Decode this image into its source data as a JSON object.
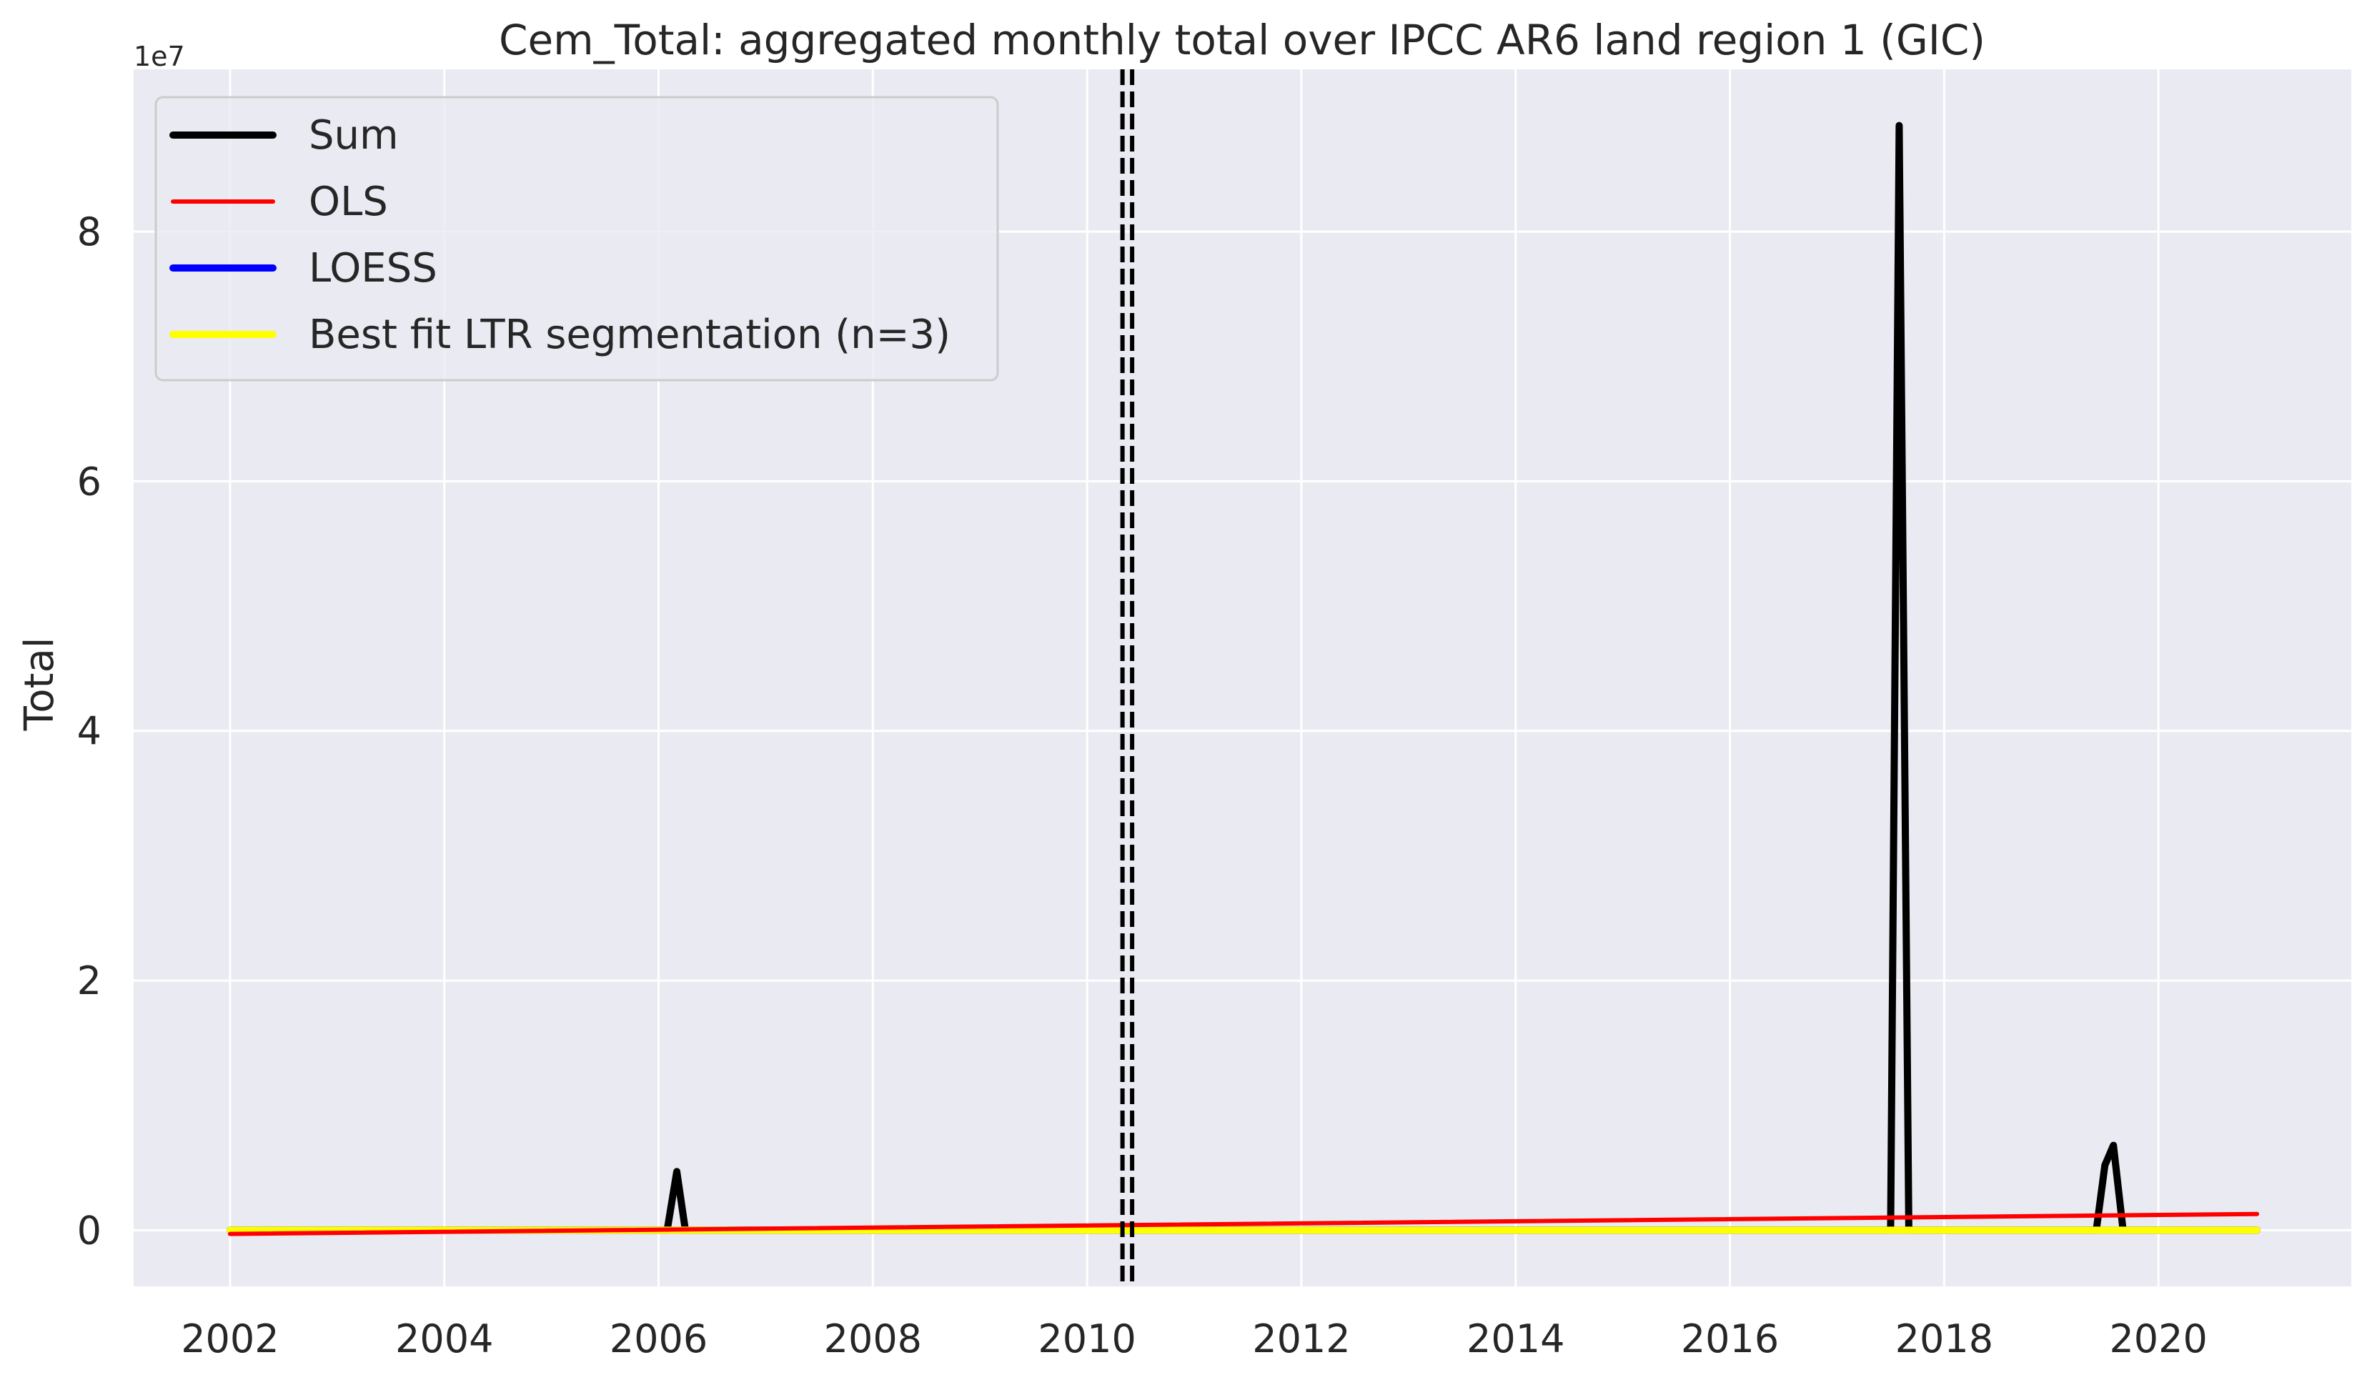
{
  "chart_data": {
    "type": "line",
    "title": "Cem_Total: aggregated monthly total over IPCC AR6 land region 1 (GIC)",
    "ylabel": "Total",
    "xlabel": "",
    "y_offset_label": "1e7",
    "y_scale": 10000000,
    "xlim": [
      2001.1,
      2021.8
    ],
    "ylim": [
      -4500000,
      93000000
    ],
    "x_ticks": [
      2002,
      2004,
      2006,
      2008,
      2010,
      2012,
      2014,
      2016,
      2018,
      2020
    ],
    "x_tick_labels": [
      "2002",
      "2004",
      "2006",
      "2008",
      "2010",
      "2012",
      "2014",
      "2016",
      "2018",
      "2020"
    ],
    "y_ticks": [
      0,
      20000000,
      40000000,
      60000000,
      80000000
    ],
    "y_tick_labels": [
      "0",
      "2",
      "4",
      "6",
      "8"
    ],
    "grid": true,
    "legend_position": "top-left",
    "series": [
      {
        "name": "Sum",
        "color": "#000000",
        "x": [
          2002.0,
          2006.08,
          2006.17,
          2006.25,
          2017.5,
          2017.58,
          2017.67,
          2019.42,
          2019.5,
          2019.58,
          2019.67,
          2020.92
        ],
        "y": [
          0,
          0,
          4700000,
          0,
          0,
          88500000,
          0,
          0,
          5200000,
          6800000,
          0,
          0
        ]
      },
      {
        "name": "OLS",
        "color": "#ff0000",
        "x": [
          2002.0,
          2020.92
        ],
        "y": [
          -300000,
          1300000
        ]
      },
      {
        "name": "LOESS",
        "color": "#0000ff",
        "x": [
          2002.0,
          2020.92
        ],
        "y": [
          0,
          0
        ]
      },
      {
        "name": "Best fit LTR segmentation (n=3)",
        "color": "#ffff00",
        "x": [
          2002.0,
          2020.92
        ],
        "y": [
          0,
          0
        ]
      }
    ],
    "vertical_lines": [
      2010.33,
      2010.42
    ]
  }
}
